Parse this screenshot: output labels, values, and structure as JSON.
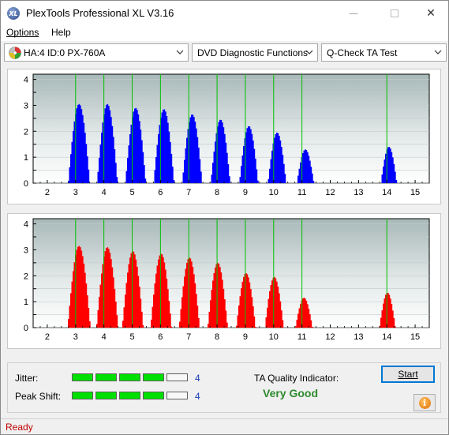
{
  "window": {
    "title": "PlexTools Professional XL V3.16",
    "icon_text": "XL",
    "controls": {
      "minimize": "minimize-icon",
      "maximize": "maximize-icon",
      "close": "close-icon"
    }
  },
  "menu": [
    {
      "label": "Options"
    },
    {
      "label": "Help"
    }
  ],
  "toolbar": {
    "drive": "HA:4 ID:0  PX-760A",
    "function": "DVD Diagnostic Functions",
    "test": "Q-Check TA Test"
  },
  "chart_data": [
    {
      "type": "bar",
      "name": "upper-distribution",
      "color": "#0000ff",
      "x_ticks": [
        "2",
        "3",
        "4",
        "5",
        "6",
        "7",
        "8",
        "9",
        "10",
        "11",
        "12",
        "13",
        "14",
        "15"
      ],
      "y_ticks": [
        "4",
        "3.5",
        "3",
        "2.5",
        "2",
        "1.5",
        "1",
        "0.5",
        "0"
      ],
      "xlim": [
        1.5,
        15.5
      ],
      "ylim": [
        0,
        4.2
      ],
      "marker_lines": [
        3,
        4,
        5,
        6,
        7,
        8,
        9,
        10,
        11,
        14
      ],
      "marker_color": "#00c000",
      "peaks": [
        {
          "center": 3.1,
          "height": 3.05,
          "width": 0.38
        },
        {
          "center": 4.1,
          "height": 3.05,
          "width": 0.36
        },
        {
          "center": 5.1,
          "height": 2.9,
          "width": 0.36
        },
        {
          "center": 6.1,
          "height": 2.85,
          "width": 0.36
        },
        {
          "center": 7.1,
          "height": 2.65,
          "width": 0.35
        },
        {
          "center": 8.1,
          "height": 2.45,
          "width": 0.34
        },
        {
          "center": 9.1,
          "height": 2.2,
          "width": 0.33
        },
        {
          "center": 10.1,
          "height": 1.95,
          "width": 0.32
        },
        {
          "center": 11.1,
          "height": 1.3,
          "width": 0.3
        },
        {
          "center": 14.05,
          "height": 1.4,
          "width": 0.28
        }
      ]
    },
    {
      "type": "bar",
      "name": "lower-distribution",
      "color": "#ff0000",
      "x_ticks": [
        "2",
        "3",
        "4",
        "5",
        "6",
        "7",
        "8",
        "9",
        "10",
        "11",
        "12",
        "13",
        "14",
        "15"
      ],
      "y_ticks": [
        "4",
        "3.5",
        "3",
        "2.5",
        "2",
        "1.5",
        "1",
        "0.5",
        "0"
      ],
      "xlim": [
        1.5,
        15.5
      ],
      "ylim": [
        0,
        4.2
      ],
      "marker_lines": [
        3,
        4,
        5,
        6,
        7,
        8,
        9,
        10,
        11,
        14
      ],
      "marker_color": "#00c000",
      "peaks": [
        {
          "center": 3.1,
          "height": 3.15,
          "width": 0.4
        },
        {
          "center": 4.1,
          "height": 3.1,
          "width": 0.38
        },
        {
          "center": 5.0,
          "height": 2.95,
          "width": 0.37
        },
        {
          "center": 6.0,
          "height": 2.85,
          "width": 0.37
        },
        {
          "center": 7.0,
          "height": 2.7,
          "width": 0.36
        },
        {
          "center": 8.0,
          "height": 2.5,
          "width": 0.35
        },
        {
          "center": 9.0,
          "height": 2.1,
          "width": 0.34
        },
        {
          "center": 10.0,
          "height": 1.95,
          "width": 0.33
        },
        {
          "center": 11.05,
          "height": 1.15,
          "width": 0.3
        },
        {
          "center": 14.0,
          "height": 1.35,
          "width": 0.28
        }
      ]
    }
  ],
  "results": {
    "jitter_label": "Jitter:",
    "jitter_level": 4,
    "jitter_value": "4",
    "peak_shift_label": "Peak Shift:",
    "peak_shift_level": 4,
    "peak_shift_value": "4",
    "segments_total": 5,
    "quality_label": "TA Quality Indicator:",
    "quality_value": "Very Good"
  },
  "buttons": {
    "start": "Start",
    "info_icon": "info-icon"
  },
  "status": "Ready"
}
